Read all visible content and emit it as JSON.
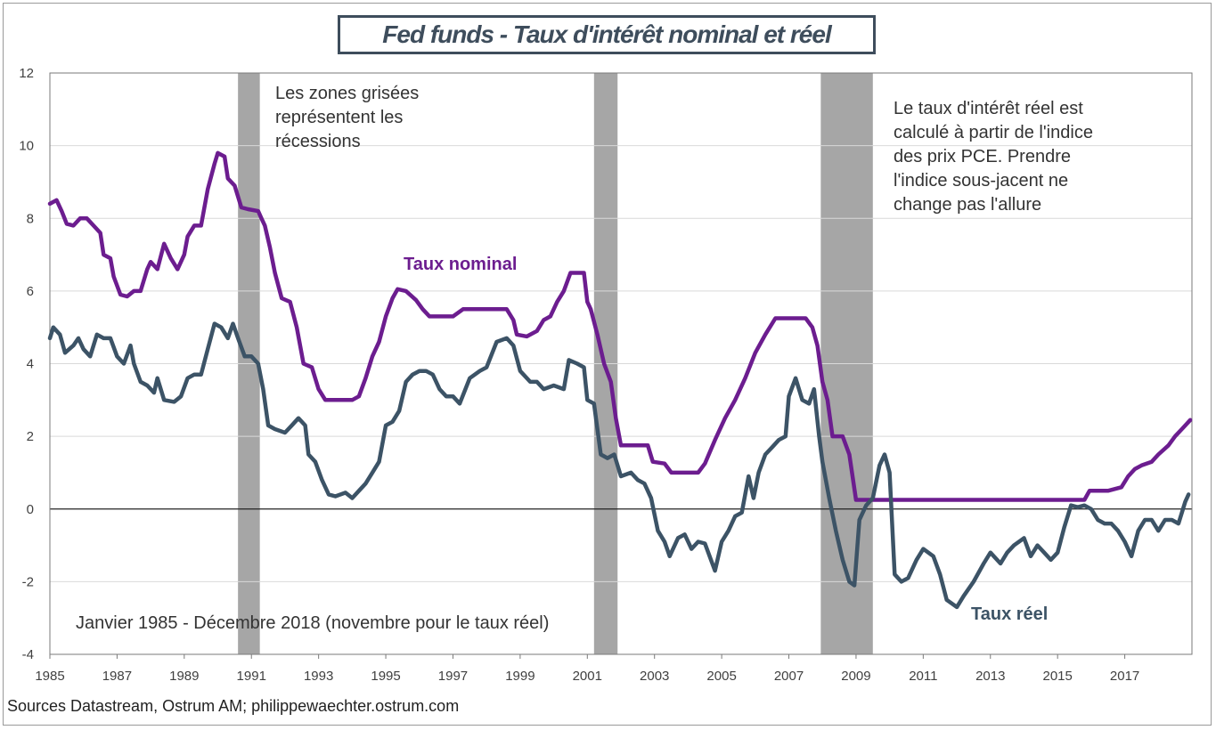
{
  "chart_data": {
    "type": "line",
    "title": "Fed funds - Taux d'intérêt nominal et réel",
    "xlim": [
      1985,
      2019
    ],
    "ylim": [
      -4,
      12
    ],
    "y_ticks": [
      12,
      10,
      8,
      6,
      4,
      2,
      0,
      -2,
      -4
    ],
    "x_ticks": [
      1985,
      1987,
      1989,
      1991,
      1993,
      1995,
      1997,
      1999,
      2001,
      2003,
      2005,
      2007,
      2009,
      2011,
      2013,
      2015,
      2017
    ],
    "grid": true,
    "recessions": [
      [
        1990.6,
        1991.25
      ],
      [
        2001.2,
        2001.9
      ],
      [
        2007.95,
        2009.5
      ]
    ],
    "annotations": {
      "recession_note": [
        "Les zones grisées",
        "représentent les",
        "récessions"
      ],
      "method_note": [
        "Le taux d'intérêt réel est",
        "calculé à partir de l'indice",
        "des prix PCE. Prendre",
        "l'indice sous-jacent ne",
        "change pas l'allure"
      ],
      "period_note": "Janvier 1985 - Décembre 2018 (novembre pour le taux réel)"
    },
    "series": [
      {
        "name": "Taux nominal",
        "color": "#6c1d8f",
        "points": [
          [
            1985.0,
            8.4
          ],
          [
            1985.2,
            8.5
          ],
          [
            1985.35,
            8.2
          ],
          [
            1985.5,
            7.85
          ],
          [
            1985.7,
            7.8
          ],
          [
            1985.9,
            8.0
          ],
          [
            1986.1,
            8.0
          ],
          [
            1986.3,
            7.8
          ],
          [
            1986.5,
            7.6
          ],
          [
            1986.6,
            7.0
          ],
          [
            1986.8,
            6.9
          ],
          [
            1986.9,
            6.4
          ],
          [
            1987.1,
            5.9
          ],
          [
            1987.3,
            5.85
          ],
          [
            1987.5,
            6.0
          ],
          [
            1987.7,
            6.0
          ],
          [
            1987.9,
            6.6
          ],
          [
            1988.0,
            6.8
          ],
          [
            1988.2,
            6.6
          ],
          [
            1988.4,
            7.3
          ],
          [
            1988.6,
            6.9
          ],
          [
            1988.8,
            6.6
          ],
          [
            1989.0,
            7.0
          ],
          [
            1989.1,
            7.5
          ],
          [
            1989.3,
            7.8
          ],
          [
            1989.5,
            7.8
          ],
          [
            1989.7,
            8.8
          ],
          [
            1989.9,
            9.5
          ],
          [
            1990.0,
            9.8
          ],
          [
            1990.2,
            9.7
          ],
          [
            1990.3,
            9.1
          ],
          [
            1990.5,
            8.9
          ],
          [
            1990.7,
            8.3
          ],
          [
            1990.9,
            8.25
          ],
          [
            1991.2,
            8.2
          ],
          [
            1991.3,
            8.0
          ],
          [
            1991.4,
            7.8
          ],
          [
            1991.55,
            7.2
          ],
          [
            1991.7,
            6.5
          ],
          [
            1991.9,
            5.8
          ],
          [
            1992.15,
            5.7
          ],
          [
            1992.35,
            5.0
          ],
          [
            1992.55,
            4.0
          ],
          [
            1992.8,
            3.9
          ],
          [
            1993.0,
            3.3
          ],
          [
            1993.2,
            3.0
          ],
          [
            1993.5,
            3.0
          ],
          [
            1994.0,
            3.0
          ],
          [
            1994.2,
            3.1
          ],
          [
            1994.4,
            3.6
          ],
          [
            1994.6,
            4.2
          ],
          [
            1994.8,
            4.6
          ],
          [
            1995.0,
            5.3
          ],
          [
            1995.2,
            5.8
          ],
          [
            1995.35,
            6.05
          ],
          [
            1995.6,
            6.0
          ],
          [
            1995.9,
            5.75
          ],
          [
            1996.1,
            5.5
          ],
          [
            1996.3,
            5.3
          ],
          [
            1996.6,
            5.3
          ],
          [
            1997.0,
            5.3
          ],
          [
            1997.3,
            5.5
          ],
          [
            1997.6,
            5.5
          ],
          [
            1998.0,
            5.5
          ],
          [
            1998.3,
            5.5
          ],
          [
            1998.6,
            5.5
          ],
          [
            1998.8,
            5.2
          ],
          [
            1998.9,
            4.8
          ],
          [
            1999.2,
            4.75
          ],
          [
            1999.5,
            4.9
          ],
          [
            1999.7,
            5.2
          ],
          [
            1999.9,
            5.3
          ],
          [
            2000.1,
            5.7
          ],
          [
            2000.3,
            6.0
          ],
          [
            2000.5,
            6.5
          ],
          [
            2000.9,
            6.5
          ],
          [
            2001.0,
            5.7
          ],
          [
            2001.1,
            5.5
          ],
          [
            2001.3,
            4.8
          ],
          [
            2001.5,
            4.0
          ],
          [
            2001.7,
            3.5
          ],
          [
            2001.85,
            2.5
          ],
          [
            2002.0,
            1.75
          ],
          [
            2002.5,
            1.75
          ],
          [
            2002.8,
            1.75
          ],
          [
            2002.95,
            1.3
          ],
          [
            2003.3,
            1.25
          ],
          [
            2003.5,
            1.0
          ],
          [
            2004.0,
            1.0
          ],
          [
            2004.3,
            1.0
          ],
          [
            2004.5,
            1.25
          ],
          [
            2004.8,
            1.9
          ],
          [
            2005.1,
            2.5
          ],
          [
            2005.4,
            3.0
          ],
          [
            2005.7,
            3.6
          ],
          [
            2006.0,
            4.3
          ],
          [
            2006.3,
            4.8
          ],
          [
            2006.6,
            5.25
          ],
          [
            2007.0,
            5.25
          ],
          [
            2007.5,
            5.25
          ],
          [
            2007.7,
            5.0
          ],
          [
            2007.85,
            4.5
          ],
          [
            2008.0,
            3.5
          ],
          [
            2008.15,
            3.0
          ],
          [
            2008.3,
            2.0
          ],
          [
            2008.6,
            2.0
          ],
          [
            2008.8,
            1.5
          ],
          [
            2009.0,
            0.25
          ],
          [
            2010.0,
            0.25
          ],
          [
            2012.0,
            0.25
          ],
          [
            2014.0,
            0.25
          ],
          [
            2015.8,
            0.25
          ],
          [
            2015.95,
            0.5
          ],
          [
            2016.5,
            0.5
          ],
          [
            2016.9,
            0.6
          ],
          [
            2017.1,
            0.9
          ],
          [
            2017.3,
            1.1
          ],
          [
            2017.5,
            1.2
          ],
          [
            2017.8,
            1.3
          ],
          [
            2018.0,
            1.5
          ],
          [
            2018.3,
            1.75
          ],
          [
            2018.5,
            2.0
          ],
          [
            2018.7,
            2.2
          ],
          [
            2018.95,
            2.45
          ]
        ]
      },
      {
        "name": "Taux réel",
        "color": "#3c5366",
        "points": [
          [
            1985.0,
            4.7
          ],
          [
            1985.1,
            5.0
          ],
          [
            1985.3,
            4.8
          ],
          [
            1985.45,
            4.3
          ],
          [
            1985.7,
            4.5
          ],
          [
            1985.85,
            4.7
          ],
          [
            1986.0,
            4.4
          ],
          [
            1986.2,
            4.2
          ],
          [
            1986.4,
            4.8
          ],
          [
            1986.6,
            4.7
          ],
          [
            1986.8,
            4.7
          ],
          [
            1987.0,
            4.2
          ],
          [
            1987.2,
            4.0
          ],
          [
            1987.4,
            4.5
          ],
          [
            1987.5,
            4.0
          ],
          [
            1987.7,
            3.5
          ],
          [
            1987.9,
            3.4
          ],
          [
            1988.1,
            3.2
          ],
          [
            1988.2,
            3.6
          ],
          [
            1988.4,
            3.0
          ],
          [
            1988.7,
            2.95
          ],
          [
            1988.9,
            3.1
          ],
          [
            1989.1,
            3.6
          ],
          [
            1989.3,
            3.7
          ],
          [
            1989.5,
            3.7
          ],
          [
            1989.7,
            4.4
          ],
          [
            1989.9,
            5.1
          ],
          [
            1990.1,
            5.0
          ],
          [
            1990.3,
            4.7
          ],
          [
            1990.45,
            5.1
          ],
          [
            1990.6,
            4.7
          ],
          [
            1990.8,
            4.2
          ],
          [
            1991.0,
            4.2
          ],
          [
            1991.2,
            4.0
          ],
          [
            1991.35,
            3.3
          ],
          [
            1991.5,
            2.3
          ],
          [
            1991.7,
            2.2
          ],
          [
            1992.0,
            2.1
          ],
          [
            1992.2,
            2.3
          ],
          [
            1992.4,
            2.5
          ],
          [
            1992.6,
            2.3
          ],
          [
            1992.7,
            1.5
          ],
          [
            1992.9,
            1.3
          ],
          [
            1993.1,
            0.8
          ],
          [
            1993.3,
            0.4
          ],
          [
            1993.5,
            0.35
          ],
          [
            1993.8,
            0.45
          ],
          [
            1994.0,
            0.3
          ],
          [
            1994.2,
            0.5
          ],
          [
            1994.4,
            0.7
          ],
          [
            1994.6,
            1.0
          ],
          [
            1994.8,
            1.3
          ],
          [
            1995.0,
            2.3
          ],
          [
            1995.2,
            2.4
          ],
          [
            1995.4,
            2.7
          ],
          [
            1995.6,
            3.5
          ],
          [
            1995.8,
            3.7
          ],
          [
            1996.0,
            3.8
          ],
          [
            1996.2,
            3.8
          ],
          [
            1996.4,
            3.7
          ],
          [
            1996.6,
            3.3
          ],
          [
            1996.8,
            3.1
          ],
          [
            1997.0,
            3.1
          ],
          [
            1997.2,
            2.9
          ],
          [
            1997.5,
            3.6
          ],
          [
            1997.8,
            3.8
          ],
          [
            1998.0,
            3.9
          ],
          [
            1998.3,
            4.6
          ],
          [
            1998.6,
            4.7
          ],
          [
            1998.8,
            4.5
          ],
          [
            1999.0,
            3.8
          ],
          [
            1999.3,
            3.5
          ],
          [
            1999.5,
            3.5
          ],
          [
            1999.7,
            3.3
          ],
          [
            2000.0,
            3.4
          ],
          [
            2000.3,
            3.3
          ],
          [
            2000.45,
            4.1
          ],
          [
            2000.7,
            4.0
          ],
          [
            2000.9,
            3.9
          ],
          [
            2001.0,
            3.0
          ],
          [
            2001.2,
            2.9
          ],
          [
            2001.4,
            1.5
          ],
          [
            2001.6,
            1.4
          ],
          [
            2001.8,
            1.5
          ],
          [
            2002.0,
            0.9
          ],
          [
            2002.3,
            1.0
          ],
          [
            2002.5,
            0.8
          ],
          [
            2002.7,
            0.7
          ],
          [
            2002.9,
            0.3
          ],
          [
            2003.1,
            -0.6
          ],
          [
            2003.3,
            -0.9
          ],
          [
            2003.45,
            -1.3
          ],
          [
            2003.7,
            -0.8
          ],
          [
            2003.9,
            -0.7
          ],
          [
            2004.1,
            -1.1
          ],
          [
            2004.3,
            -0.9
          ],
          [
            2004.5,
            -0.95
          ],
          [
            2004.8,
            -1.7
          ],
          [
            2005.0,
            -0.9
          ],
          [
            2005.2,
            -0.6
          ],
          [
            2005.4,
            -0.2
          ],
          [
            2005.6,
            -0.1
          ],
          [
            2005.8,
            0.9
          ],
          [
            2005.95,
            0.3
          ],
          [
            2006.1,
            1.0
          ],
          [
            2006.3,
            1.5
          ],
          [
            2006.5,
            1.7
          ],
          [
            2006.7,
            1.9
          ],
          [
            2006.9,
            2.0
          ],
          [
            2007.0,
            3.1
          ],
          [
            2007.2,
            3.6
          ],
          [
            2007.4,
            3.0
          ],
          [
            2007.6,
            2.9
          ],
          [
            2007.75,
            3.3
          ],
          [
            2007.9,
            2.0
          ],
          [
            2008.0,
            1.3
          ],
          [
            2008.2,
            0.3
          ],
          [
            2008.4,
            -0.6
          ],
          [
            2008.6,
            -1.4
          ],
          [
            2008.8,
            -2.0
          ],
          [
            2008.95,
            -2.1
          ],
          [
            2009.1,
            -0.3
          ],
          [
            2009.3,
            0.1
          ],
          [
            2009.5,
            0.3
          ],
          [
            2009.7,
            1.2
          ],
          [
            2009.85,
            1.5
          ],
          [
            2010.0,
            1.0
          ],
          [
            2010.15,
            -1.8
          ],
          [
            2010.35,
            -2.0
          ],
          [
            2010.55,
            -1.9
          ],
          [
            2010.8,
            -1.4
          ],
          [
            2011.0,
            -1.1
          ],
          [
            2011.3,
            -1.3
          ],
          [
            2011.5,
            -1.8
          ],
          [
            2011.7,
            -2.5
          ],
          [
            2012.0,
            -2.7
          ],
          [
            2012.2,
            -2.4
          ],
          [
            2012.5,
            -2.0
          ],
          [
            2012.8,
            -1.5
          ],
          [
            2013.0,
            -1.2
          ],
          [
            2013.3,
            -1.5
          ],
          [
            2013.5,
            -1.2
          ],
          [
            2013.7,
            -1.0
          ],
          [
            2014.0,
            -0.8
          ],
          [
            2014.2,
            -1.3
          ],
          [
            2014.4,
            -1.0
          ],
          [
            2014.6,
            -1.2
          ],
          [
            2014.8,
            -1.4
          ],
          [
            2015.0,
            -1.2
          ],
          [
            2015.2,
            -0.5
          ],
          [
            2015.4,
            0.1
          ],
          [
            2015.6,
            0.05
          ],
          [
            2015.8,
            0.1
          ],
          [
            2016.0,
            0.0
          ],
          [
            2016.2,
            -0.3
          ],
          [
            2016.4,
            -0.4
          ],
          [
            2016.6,
            -0.4
          ],
          [
            2016.8,
            -0.6
          ],
          [
            2017.0,
            -0.9
          ],
          [
            2017.2,
            -1.3
          ],
          [
            2017.4,
            -0.6
          ],
          [
            2017.6,
            -0.3
          ],
          [
            2017.8,
            -0.3
          ],
          [
            2018.0,
            -0.6
          ],
          [
            2018.2,
            -0.3
          ],
          [
            2018.4,
            -0.3
          ],
          [
            2018.6,
            -0.4
          ],
          [
            2018.8,
            0.2
          ],
          [
            2018.9,
            0.4
          ]
        ]
      }
    ]
  },
  "series_labels": {
    "nominal": "Taux nominal",
    "real": "Taux réel"
  },
  "source": "Sources Datastream,  Ostrum AM; philippewaechter.ostrum.com"
}
